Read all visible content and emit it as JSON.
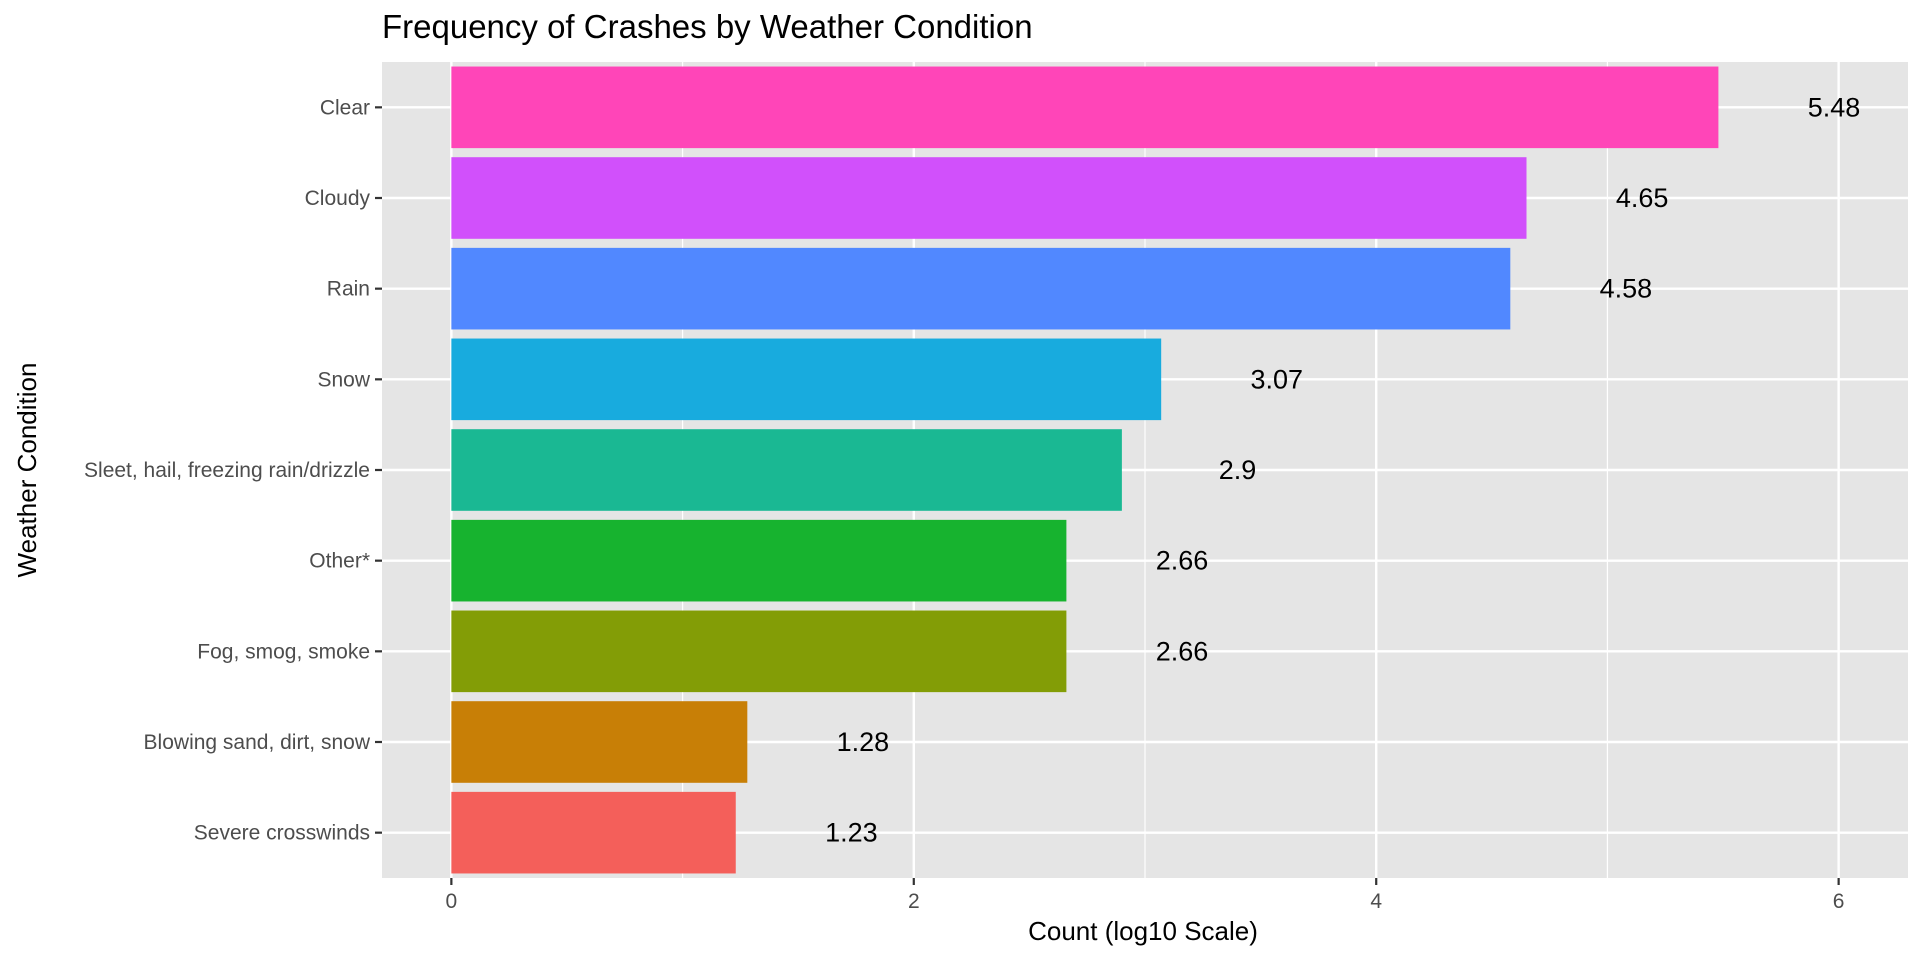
{
  "chart_data": {
    "type": "bar",
    "orientation": "horizontal",
    "title": "Frequency of Crashes by Weather Condition",
    "xlabel": "Count (log10 Scale)",
    "ylabel": "Weather Condition",
    "xlim": [
      -0.3,
      6.3
    ],
    "xticks": [
      0,
      2,
      4,
      6
    ],
    "xtick_labels": [
      "0",
      "2",
      "4",
      "6"
    ],
    "grid": true,
    "legend": "none",
    "categories": [
      "Clear",
      "Cloudy",
      "Rain",
      "Snow",
      "Sleet, hail, freezing rain/drizzle",
      "Other*",
      "Fog, smog, smoke",
      "Blowing sand, dirt, snow",
      "Severe crosswinds"
    ],
    "values": [
      5.48,
      4.65,
      4.58,
      3.07,
      2.9,
      2.66,
      2.66,
      1.28,
      1.23
    ],
    "value_labels": [
      "5.48",
      "4.65",
      "4.58",
      "3.07",
      "2.9",
      "2.66",
      "2.66",
      "1.28",
      "1.23"
    ],
    "colors": [
      "#FF45B8",
      "#D150FB",
      "#5188FF",
      "#18ABDE",
      "#1AB893",
      "#17B32F",
      "#839D06",
      "#C87F06",
      "#F45F5A"
    ]
  }
}
